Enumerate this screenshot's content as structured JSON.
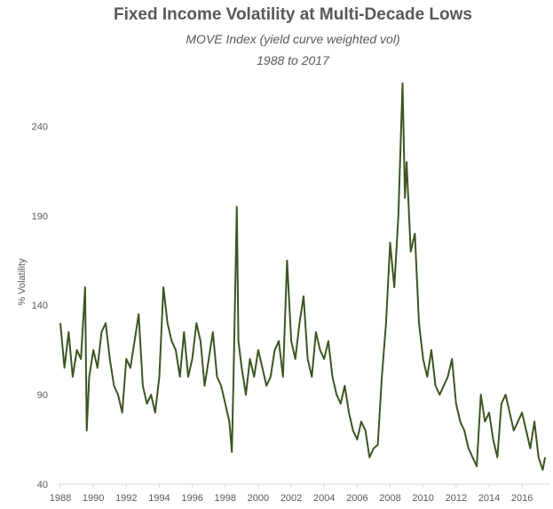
{
  "chart_data": {
    "type": "line",
    "title": "Fixed Income Volatility at Multi-Decade Lows",
    "subtitle": "MOVE Index (yield curve weighted vol)",
    "subtitle2": "1988 to 2017",
    "y_label": "% Volatility",
    "x": [
      1988.0,
      1988.25,
      1988.5,
      1988.75,
      1989.0,
      1989.25,
      1989.5,
      1989.6,
      1989.75,
      1990.0,
      1990.25,
      1990.5,
      1990.75,
      1991.0,
      1991.25,
      1991.5,
      1991.75,
      1992.0,
      1992.25,
      1992.5,
      1992.75,
      1993.0,
      1993.25,
      1993.5,
      1993.75,
      1994.0,
      1994.25,
      1994.5,
      1994.75,
      1995.0,
      1995.25,
      1995.5,
      1995.75,
      1996.0,
      1996.25,
      1996.5,
      1996.75,
      1997.0,
      1997.25,
      1997.5,
      1997.75,
      1998.0,
      1998.25,
      1998.4,
      1998.5,
      1998.7,
      1998.8,
      1999.0,
      1999.25,
      1999.5,
      1999.75,
      2000.0,
      2000.25,
      2000.5,
      2000.75,
      2001.0,
      2001.25,
      2001.5,
      2001.75,
      2002.0,
      2002.25,
      2002.5,
      2002.75,
      2003.0,
      2003.25,
      2003.5,
      2003.75,
      2004.0,
      2004.25,
      2004.5,
      2004.75,
      2005.0,
      2005.25,
      2005.5,
      2005.75,
      2006.0,
      2006.25,
      2006.5,
      2006.75,
      2007.0,
      2007.25,
      2007.5,
      2007.75,
      2008.0,
      2008.25,
      2008.5,
      2008.75,
      2008.9,
      2009.0,
      2009.25,
      2009.5,
      2009.75,
      2010.0,
      2010.25,
      2010.5,
      2010.75,
      2011.0,
      2011.25,
      2011.5,
      2011.75,
      2012.0,
      2012.25,
      2012.5,
      2012.75,
      2013.0,
      2013.25,
      2013.5,
      2013.75,
      2014.0,
      2014.25,
      2014.5,
      2014.75,
      2015.0,
      2015.25,
      2015.5,
      2015.75,
      2016.0,
      2016.25,
      2016.5,
      2016.75,
      2017.0,
      2017.25,
      2017.4
    ],
    "series": [
      {
        "name": "MOVE Index",
        "color": "#3b5620",
        "values": [
          130,
          105,
          125,
          100,
          115,
          110,
          150,
          70,
          100,
          115,
          105,
          125,
          130,
          110,
          95,
          90,
          80,
          110,
          105,
          120,
          135,
          95,
          85,
          90,
          80,
          100,
          150,
          130,
          120,
          115,
          100,
          125,
          100,
          110,
          130,
          120,
          95,
          110,
          125,
          100,
          95,
          85,
          75,
          58,
          100,
          195,
          120,
          105,
          90,
          110,
          100,
          115,
          105,
          95,
          100,
          115,
          120,
          100,
          165,
          120,
          110,
          130,
          145,
          110,
          100,
          125,
          115,
          110,
          120,
          100,
          90,
          85,
          95,
          80,
          70,
          65,
          75,
          70,
          55,
          60,
          62,
          100,
          130,
          175,
          150,
          190,
          264,
          200,
          220,
          170,
          180,
          130,
          110,
          100,
          115,
          95,
          90,
          95,
          100,
          110,
          85,
          75,
          70,
          60,
          55,
          50,
          90,
          75,
          80,
          65,
          55,
          85,
          90,
          80,
          70,
          75,
          80,
          70,
          60,
          75,
          55,
          48,
          55
        ]
      }
    ],
    "xlim": [
      1988,
      2017.5
    ],
    "xticks": [
      1988,
      1990,
      1992,
      1994,
      1996,
      1998,
      2000,
      2002,
      2004,
      2006,
      2008,
      2010,
      2012,
      2014,
      2016
    ],
    "ylim": [
      40,
      265
    ],
    "yticks": [
      40,
      90,
      140,
      190,
      240
    ]
  }
}
